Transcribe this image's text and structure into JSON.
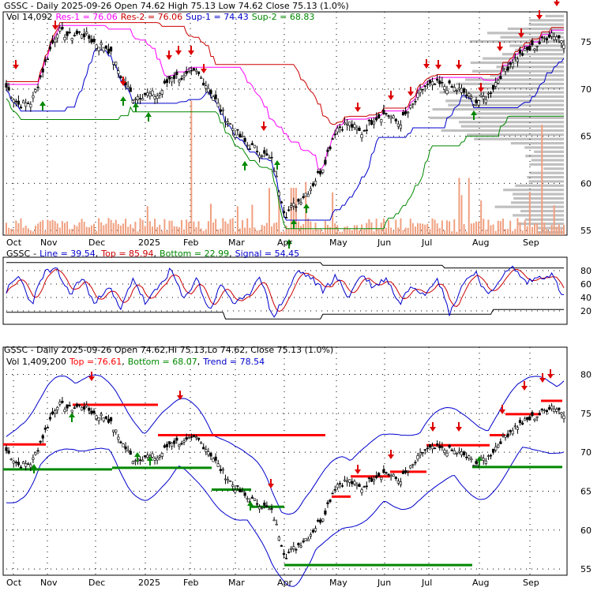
{
  "chart_data": [
    {
      "type": "candlestick",
      "panel": "price",
      "header": {
        "ticker": "GSSC",
        "text": " - Daily 2025-09-26 Open 74.62  High 75.13  Low 74.62  Close 75.13 (1.0%)"
      },
      "legend": {
        "vol": "Vol 14,092",
        "res1": "Res-1 = 76.06",
        "res2": "Res-2 = 76.06",
        "sup1": "Sup-1 = 74.43",
        "sup2": "Sup-2 = 68.83"
      },
      "y_ticks": [
        "75",
        "70",
        "65",
        "60",
        "55"
      ],
      "y_tick_values": [
        75,
        70,
        65,
        60,
        55
      ],
      "ylim": [
        54.5,
        78.2
      ],
      "x_tick_labels": [
        "Oct",
        "Nov",
        "Dec",
        "2025",
        "Feb",
        "Mar",
        "Apr",
        "May",
        "Jun",
        "Jul",
        "Aug",
        "Sep"
      ],
      "close_series_weekly": [
        70.2,
        68.3,
        68.6,
        72.5,
        76.2,
        75.6,
        76.0,
        74.9,
        74.4,
        71.5,
        69.1,
        69.5,
        69.3,
        71.4,
        71.2,
        71.8,
        70.1,
        67.6,
        65.6,
        64.1,
        63.4,
        62.3,
        56.7,
        58.0,
        59.5,
        61.8,
        65.8,
        66.4,
        65.3,
        66.9,
        67.4,
        66.3,
        68.1,
        70.3,
        70.5,
        70.2,
        69.8,
        68.6,
        69.3,
        71.5,
        73.1,
        74.0,
        74.8,
        76.0,
        75.1
      ],
      "colors": {
        "res1": "#ff00ff",
        "res2": "#cc0000",
        "sup1": "#0000cc",
        "sup2": "#008800",
        "volume": "#f0a080",
        "profile": "#c0c0c0"
      },
      "signals": "red down arrows = sell signals, green up arrows = buy signals"
    },
    {
      "type": "line",
      "panel": "stochastic",
      "header": {
        "ticker": "GSSC",
        "line": "Line = 39.54",
        "top": "Top = 85.94",
        "bottom": "Bottom = 22.99",
        "signal": "Signal = 54.45"
      },
      "y_ticks": [
        "80",
        "60",
        "40",
        "20"
      ],
      "y_tick_values": [
        80,
        60,
        40,
        20
      ],
      "ylim": [
        0,
        100
      ],
      "line_weekly": [
        50,
        72,
        30,
        78,
        80,
        45,
        70,
        28,
        60,
        20,
        70,
        30,
        55,
        82,
        35,
        70,
        20,
        60,
        30,
        40,
        75,
        10,
        40,
        80,
        70,
        50,
        72,
        40,
        75,
        55,
        70,
        30,
        60,
        45,
        72,
        15,
        60,
        80,
        40,
        70,
        85,
        62,
        70,
        75,
        40
      ],
      "colors": {
        "line": "#0000cc",
        "signal": "#cc0000",
        "bands": "#000000"
      }
    },
    {
      "type": "candlestick",
      "panel": "trend",
      "header": {
        "ticker": "GSSC",
        "text": " - Daily 2025-09-26 Open 74.62,Hi 75.13,Lo 74.62, Close 75.13 (1.0%)"
      },
      "legend": {
        "vol": "Vol 1,409,200",
        "top": "Top = 76.61",
        "bottom": "Bottom = 68.07",
        "trend": "Trend = 78.54"
      },
      "y_ticks": [
        "80",
        "75",
        "70",
        "65",
        "60",
        "55"
      ],
      "y_tick_values": [
        80,
        75,
        70,
        65,
        60,
        55
      ],
      "ylim": [
        54.2,
        83.5
      ],
      "x_tick_labels": [
        "Oct",
        "Nov",
        "Dec",
        "2025",
        "Feb",
        "Mar",
        "Apr",
        "May",
        "Jun",
        "Jul",
        "Aug",
        "Sep"
      ],
      "colors": {
        "top": "#ff0000",
        "bottom": "#008800",
        "trend": "#0000cc"
      }
    }
  ]
}
